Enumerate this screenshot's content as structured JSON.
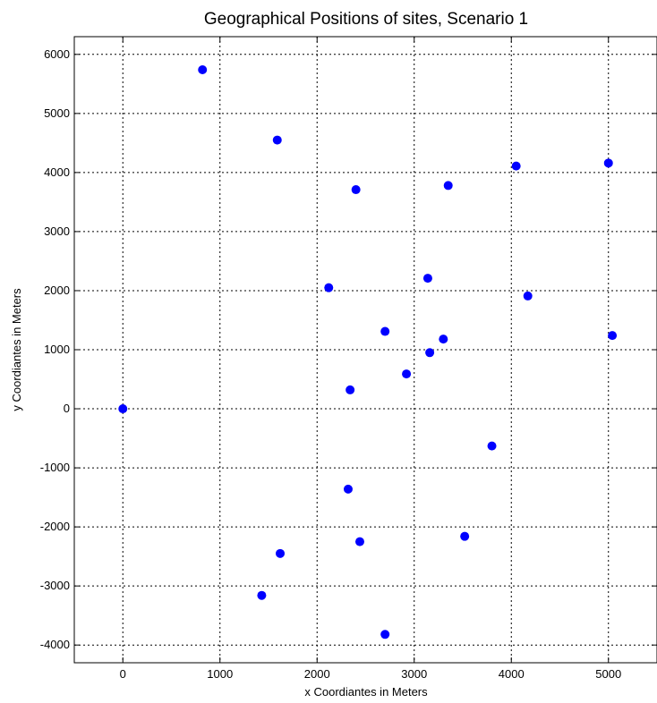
{
  "chart_data": {
    "type": "scatter",
    "title": "Geographical Positions of sites, Scenario 1",
    "xlabel": "x Coordiantes in Meters",
    "ylabel": "y Coordiantes in Meters",
    "xlim": [
      -500,
      5500
    ],
    "ylim": [
      -4300,
      6300
    ],
    "xticks": [
      0,
      1000,
      2000,
      3000,
      4000,
      5000
    ],
    "yticks": [
      -4000,
      -3000,
      -2000,
      -1000,
      0,
      1000,
      2000,
      3000,
      4000,
      5000,
      6000
    ],
    "xtick_labels": [
      "0",
      "1000",
      "2000",
      "3000",
      "4000",
      "5000"
    ],
    "ytick_labels": [
      "-4000",
      "-3000",
      "-2000",
      "-1000",
      "0",
      "1000",
      "2000",
      "3000",
      "4000",
      "5000",
      "6000"
    ],
    "grid": true,
    "grid_style": "dotted",
    "marker_color": "#0000ff",
    "points": [
      {
        "x": 0,
        "y": 0
      },
      {
        "x": 820,
        "y": 5740
      },
      {
        "x": 1590,
        "y": 4550
      },
      {
        "x": 2400,
        "y": 3710
      },
      {
        "x": 3350,
        "y": 3780
      },
      {
        "x": 4050,
        "y": 4110
      },
      {
        "x": 5000,
        "y": 4160
      },
      {
        "x": 2120,
        "y": 2050
      },
      {
        "x": 3140,
        "y": 2210
      },
      {
        "x": 4170,
        "y": 1910
      },
      {
        "x": 2700,
        "y": 1310
      },
      {
        "x": 3300,
        "y": 1180
      },
      {
        "x": 5040,
        "y": 1240
      },
      {
        "x": 3160,
        "y": 950
      },
      {
        "x": 2920,
        "y": 590
      },
      {
        "x": 2340,
        "y": 320
      },
      {
        "x": 3800,
        "y": -630
      },
      {
        "x": 2320,
        "y": -1360
      },
      {
        "x": 1620,
        "y": -2450
      },
      {
        "x": 2440,
        "y": -2250
      },
      {
        "x": 3520,
        "y": -2160
      },
      {
        "x": 1430,
        "y": -3160
      },
      {
        "x": 2700,
        "y": -3820
      }
    ]
  }
}
